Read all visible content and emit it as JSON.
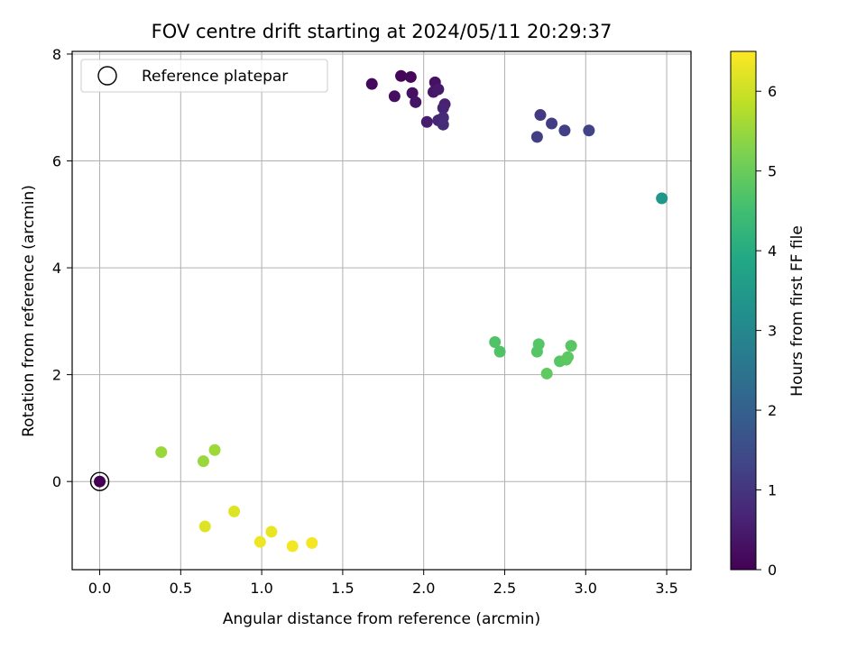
{
  "chart_data": {
    "type": "scatter",
    "title": "FOV centre drift starting at 2024/05/11 20:29:37",
    "xlabel": "Angular distance from reference (arcmin)",
    "ylabel": "Rotation from reference (arcmin)",
    "xlim": [
      -0.17,
      3.65
    ],
    "ylim": [
      -1.65,
      8.05
    ],
    "xticks": [
      "0.0",
      "0.5",
      "1.0",
      "1.5",
      "2.0",
      "2.5",
      "3.0",
      "3.5"
    ],
    "yticks": [
      "0",
      "2",
      "4",
      "6",
      "8"
    ],
    "grid": true,
    "legend": {
      "placement": "top-left",
      "entries": [
        "Reference platepar"
      ]
    },
    "reference_point": {
      "x": 0.0,
      "y": 0.0
    },
    "colorbar": {
      "label": "Hours from first FF file",
      "range": [
        0,
        6.5
      ],
      "ticks": [
        "0",
        "1",
        "2",
        "3",
        "4",
        "5",
        "6"
      ],
      "colormap": "viridis"
    },
    "points": [
      {
        "x": 0.0,
        "y": 0.0,
        "h": 0.0
      },
      {
        "x": 1.68,
        "y": 7.44,
        "h": 0.15
      },
      {
        "x": 1.86,
        "y": 7.59,
        "h": 0.1
      },
      {
        "x": 1.92,
        "y": 7.57,
        "h": 0.15
      },
      {
        "x": 1.82,
        "y": 7.21,
        "h": 0.25
      },
      {
        "x": 1.93,
        "y": 7.27,
        "h": 0.3
      },
      {
        "x": 1.95,
        "y": 7.1,
        "h": 0.35
      },
      {
        "x": 2.07,
        "y": 7.47,
        "h": 0.3
      },
      {
        "x": 2.06,
        "y": 7.29,
        "h": 0.4
      },
      {
        "x": 2.09,
        "y": 7.34,
        "h": 0.45
      },
      {
        "x": 2.02,
        "y": 6.73,
        "h": 0.5
      },
      {
        "x": 2.13,
        "y": 7.06,
        "h": 0.6
      },
      {
        "x": 2.12,
        "y": 6.99,
        "h": 0.65
      },
      {
        "x": 2.09,
        "y": 6.76,
        "h": 0.7
      },
      {
        "x": 2.12,
        "y": 6.81,
        "h": 0.75
      },
      {
        "x": 2.12,
        "y": 6.68,
        "h": 0.8
      },
      {
        "x": 2.72,
        "y": 6.86,
        "h": 1.1
      },
      {
        "x": 2.79,
        "y": 6.7,
        "h": 1.15
      },
      {
        "x": 2.87,
        "y": 6.57,
        "h": 1.2
      },
      {
        "x": 2.7,
        "y": 6.45,
        "h": 1.2
      },
      {
        "x": 3.02,
        "y": 6.57,
        "h": 1.25
      },
      {
        "x": 3.47,
        "y": 5.3,
        "h": 3.4
      },
      {
        "x": 2.44,
        "y": 2.61,
        "h": 4.7
      },
      {
        "x": 2.47,
        "y": 2.43,
        "h": 4.7
      },
      {
        "x": 2.71,
        "y": 2.57,
        "h": 4.75
      },
      {
        "x": 2.7,
        "y": 2.43,
        "h": 4.75
      },
      {
        "x": 2.91,
        "y": 2.54,
        "h": 4.8
      },
      {
        "x": 2.84,
        "y": 2.25,
        "h": 4.8
      },
      {
        "x": 2.88,
        "y": 2.28,
        "h": 4.85
      },
      {
        "x": 2.89,
        "y": 2.33,
        "h": 4.85
      },
      {
        "x": 2.76,
        "y": 2.02,
        "h": 4.9
      },
      {
        "x": 0.38,
        "y": 0.55,
        "h": 5.5
      },
      {
        "x": 0.64,
        "y": 0.38,
        "h": 5.5
      },
      {
        "x": 0.71,
        "y": 0.59,
        "h": 5.55
      },
      {
        "x": 0.65,
        "y": -0.84,
        "h": 6.2
      },
      {
        "x": 0.83,
        "y": -0.56,
        "h": 6.2
      },
      {
        "x": 1.06,
        "y": -0.94,
        "h": 6.3
      },
      {
        "x": 0.99,
        "y": -1.13,
        "h": 6.35
      },
      {
        "x": 1.19,
        "y": -1.21,
        "h": 6.4
      },
      {
        "x": 1.31,
        "y": -1.15,
        "h": 6.4
      }
    ]
  }
}
